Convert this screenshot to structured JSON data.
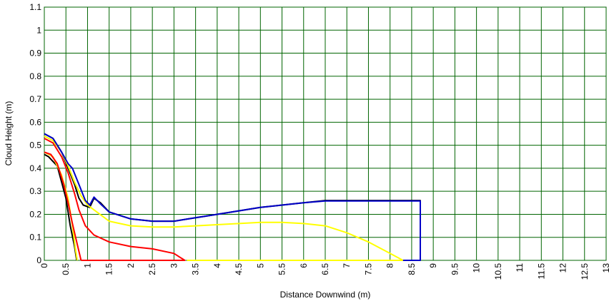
{
  "chart_data": {
    "type": "line",
    "title": "",
    "xlabel": "Distance Downwind (m)",
    "ylabel": "Cloud Height (m)",
    "xlim": [
      0,
      13
    ],
    "ylim": [
      0,
      1.1
    ],
    "xticks": [
      0,
      0.5,
      1,
      1.5,
      2,
      2.5,
      3,
      3.5,
      4,
      4.5,
      5,
      5.5,
      6,
      6.5,
      7,
      7.5,
      8,
      8.5,
      9,
      9.5,
      10,
      10.5,
      11,
      11.5,
      12,
      12.5,
      13
    ],
    "xtick_labels": [
      "0",
      "0.5",
      "1",
      "1.5",
      "2",
      "2.5",
      "3",
      "3.5",
      "4",
      "4.5",
      "5",
      "5.5",
      "6",
      "6.5",
      "7",
      "7.5",
      "8",
      "8.5",
      "9",
      "9.5",
      "10",
      "10.5",
      "11",
      "11.5",
      "12",
      "12.5",
      "13"
    ],
    "yticks": [
      0,
      0.1,
      0.2,
      0.3,
      0.4,
      0.5,
      0.6,
      0.7,
      0.8,
      0.9,
      1,
      1.1
    ],
    "ytick_labels": [
      "0",
      "0.1",
      "0.2",
      "0.3",
      "0.4",
      "0.5",
      "0.6",
      "0.7",
      "0.8",
      "0.9",
      "1",
      "1.1"
    ],
    "grid": true,
    "grid_color": "#006400",
    "legend": "none",
    "series": [
      {
        "color": "#000000",
        "points": [
          [
            0,
            0.55
          ],
          [
            0.2,
            0.53
          ],
          [
            0.4,
            0.47
          ],
          [
            0.55,
            0.4
          ],
          [
            0.7,
            0.33
          ],
          [
            0.8,
            0.27
          ],
          [
            0.9,
            0.24
          ],
          [
            1.05,
            0.23
          ],
          [
            1.15,
            0.27
          ],
          [
            1.3,
            0.25
          ],
          [
            1.5,
            0.21
          ],
          [
            2,
            0.18
          ],
          [
            2.5,
            0.17
          ],
          [
            3,
            0.17
          ],
          [
            3.5,
            0.185
          ],
          [
            4,
            0.2
          ],
          [
            4.5,
            0.215
          ],
          [
            5,
            0.23
          ],
          [
            5.5,
            0.24
          ],
          [
            6,
            0.25
          ],
          [
            6.5,
            0.26
          ],
          [
            8.7,
            0.26
          ],
          [
            8.7,
            0
          ],
          [
            8.3,
            0
          ]
        ],
        "points_b": [
          [
            0,
            0.46
          ],
          [
            0.1,
            0.45
          ],
          [
            0.3,
            0.41
          ],
          [
            0.4,
            0.34
          ],
          [
            0.5,
            0.27
          ],
          [
            0.6,
            0.15
          ],
          [
            0.7,
            0.06
          ],
          [
            0.75,
            0
          ]
        ]
      },
      {
        "color": "#ffff00",
        "points": [
          [
            0,
            0.54
          ],
          [
            0.2,
            0.52
          ],
          [
            0.4,
            0.47
          ],
          [
            0.55,
            0.41
          ],
          [
            0.7,
            0.34
          ],
          [
            0.85,
            0.28
          ],
          [
            1,
            0.24
          ],
          [
            1.5,
            0.17
          ],
          [
            2,
            0.15
          ],
          [
            2.5,
            0.145
          ],
          [
            3,
            0.145
          ],
          [
            3.5,
            0.15
          ],
          [
            4,
            0.155
          ],
          [
            4.5,
            0.16
          ],
          [
            5,
            0.165
          ],
          [
            5.5,
            0.165
          ],
          [
            6,
            0.16
          ],
          [
            6.5,
            0.15
          ],
          [
            7,
            0.12
          ],
          [
            7.5,
            0.08
          ],
          [
            8,
            0.03
          ],
          [
            8.3,
            0
          ],
          [
            3.3,
            0
          ]
        ],
        "points_b": [
          [
            0,
            0.47
          ],
          [
            0.2,
            0.45
          ],
          [
            0.4,
            0.37
          ],
          [
            0.55,
            0.27
          ],
          [
            0.65,
            0.15
          ],
          [
            0.72,
            0.05
          ],
          [
            0.76,
            0
          ]
        ]
      },
      {
        "color": "#ff0000",
        "points": [
          [
            0,
            0.53
          ],
          [
            0.2,
            0.51
          ],
          [
            0.4,
            0.45
          ],
          [
            0.55,
            0.38
          ],
          [
            0.7,
            0.29
          ],
          [
            0.8,
            0.22
          ],
          [
            0.95,
            0.15
          ],
          [
            1.15,
            0.11
          ],
          [
            1.5,
            0.08
          ],
          [
            2,
            0.06
          ],
          [
            2.5,
            0.05
          ],
          [
            3,
            0.03
          ],
          [
            3.25,
            0
          ],
          [
            0.85,
            0
          ]
        ],
        "points_b": [
          [
            0,
            0.47
          ],
          [
            0.15,
            0.46
          ],
          [
            0.3,
            0.42
          ],
          [
            0.45,
            0.33
          ],
          [
            0.55,
            0.25
          ],
          [
            0.65,
            0.16
          ],
          [
            0.75,
            0.08
          ],
          [
            0.85,
            0
          ]
        ]
      },
      {
        "color": "#0000c8",
        "points": [
          [
            0,
            0.55
          ],
          [
            0.2,
            0.53
          ],
          [
            0.4,
            0.47
          ],
          [
            0.55,
            0.42
          ],
          [
            0.65,
            0.4
          ],
          [
            0.8,
            0.33
          ],
          [
            0.95,
            0.26
          ],
          [
            1.05,
            0.24
          ],
          [
            1.15,
            0.275
          ],
          [
            1.3,
            0.245
          ],
          [
            1.5,
            0.21
          ],
          [
            2,
            0.18
          ],
          [
            2.5,
            0.17
          ],
          [
            3,
            0.17
          ],
          [
            3.5,
            0.185
          ],
          [
            4,
            0.2
          ],
          [
            4.5,
            0.215
          ],
          [
            5,
            0.23
          ],
          [
            5.5,
            0.24
          ],
          [
            6,
            0.25
          ],
          [
            6.5,
            0.258
          ],
          [
            8.7,
            0.258
          ],
          [
            8.7,
            0
          ],
          [
            8.3,
            0
          ]
        ]
      }
    ]
  }
}
